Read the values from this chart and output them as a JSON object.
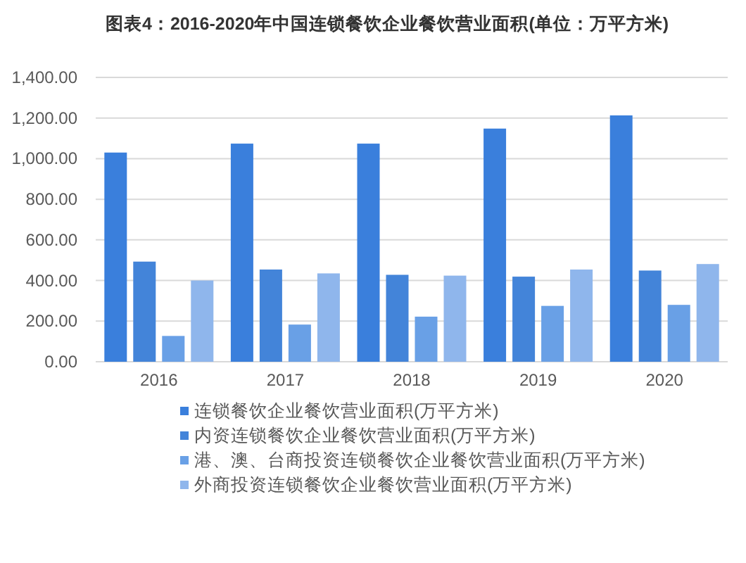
{
  "chart_data": {
    "type": "bar",
    "title": "图表4：2016-2020年中国连锁餐饮企业餐饮营业面积(单位：万平方米)",
    "categories": [
      "2016",
      "2017",
      "2018",
      "2019",
      "2020"
    ],
    "series": [
      {
        "name": "连锁餐饮企业餐饮营业面积(万平方米)",
        "color": "#3a7fdc",
        "values": [
          1030,
          1074,
          1074,
          1148,
          1213
        ]
      },
      {
        "name": "内资连锁餐饮企业餐饮营业面积(万平方米)",
        "color": "#4384d9",
        "values": [
          493,
          454,
          428,
          419,
          449
        ]
      },
      {
        "name": "港、澳、台商投资连锁餐饮企业餐饮营业面积(万平方米)",
        "color": "#69a0e6",
        "values": [
          127,
          183,
          222,
          275,
          280
        ]
      },
      {
        "name": "外商投资连锁餐饮企业餐饮营业面积(万平方米)",
        "color": "#8fb6ec",
        "values": [
          400,
          435,
          424,
          454,
          481
        ]
      }
    ],
    "ylim": [
      0,
      1400
    ],
    "yticks": [
      {
        "value": 0,
        "label": "0.00"
      },
      {
        "value": 200,
        "label": "200.00"
      },
      {
        "value": 400,
        "label": "400.00"
      },
      {
        "value": 600,
        "label": "600.00"
      },
      {
        "value": 800,
        "label": "800.00"
      },
      {
        "value": 1000,
        "label": "1,000.00"
      },
      {
        "value": 1200,
        "label": "1,200.00"
      },
      {
        "value": 1400,
        "label": "1,400.00"
      }
    ],
    "grid": "y",
    "legend": "bottom"
  }
}
